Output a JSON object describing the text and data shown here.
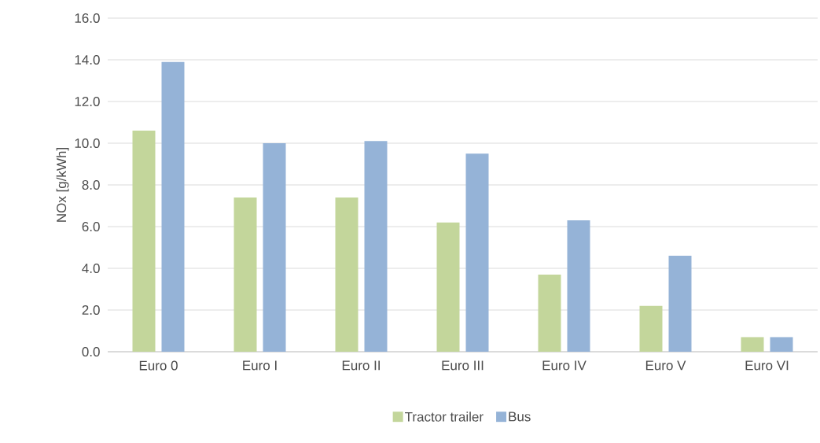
{
  "chart_data": {
    "type": "bar",
    "ylabel": "NOx [g/kWh]",
    "categories": [
      "Euro 0",
      "Euro I",
      "Euro II",
      "Euro III",
      "Euro IV",
      "Euro V",
      "Euro VI"
    ],
    "series": [
      {
        "name": "Tractor trailer",
        "color": "#c3d69b",
        "values": [
          10.6,
          7.4,
          7.4,
          6.2,
          3.7,
          2.2,
          0.7
        ]
      },
      {
        "name": "Bus",
        "color": "#95b3d7",
        "values": [
          13.9,
          10.0,
          10.1,
          9.5,
          6.3,
          4.6,
          0.7
        ]
      }
    ],
    "ylim": [
      0,
      16
    ],
    "yticks": [
      {
        "value": 0,
        "label": "0.0"
      },
      {
        "value": 2,
        "label": "2.0"
      },
      {
        "value": 4,
        "label": "4.0"
      },
      {
        "value": 6,
        "label": "6.0"
      },
      {
        "value": 8,
        "label": "8.0"
      },
      {
        "value": 10,
        "label": "10.0"
      },
      {
        "value": 12,
        "label": "12.0"
      },
      {
        "value": 14,
        "label": "14.0"
      },
      {
        "value": 16,
        "label": "16.0"
      }
    ],
    "grid": "y",
    "legend": "bottom"
  }
}
